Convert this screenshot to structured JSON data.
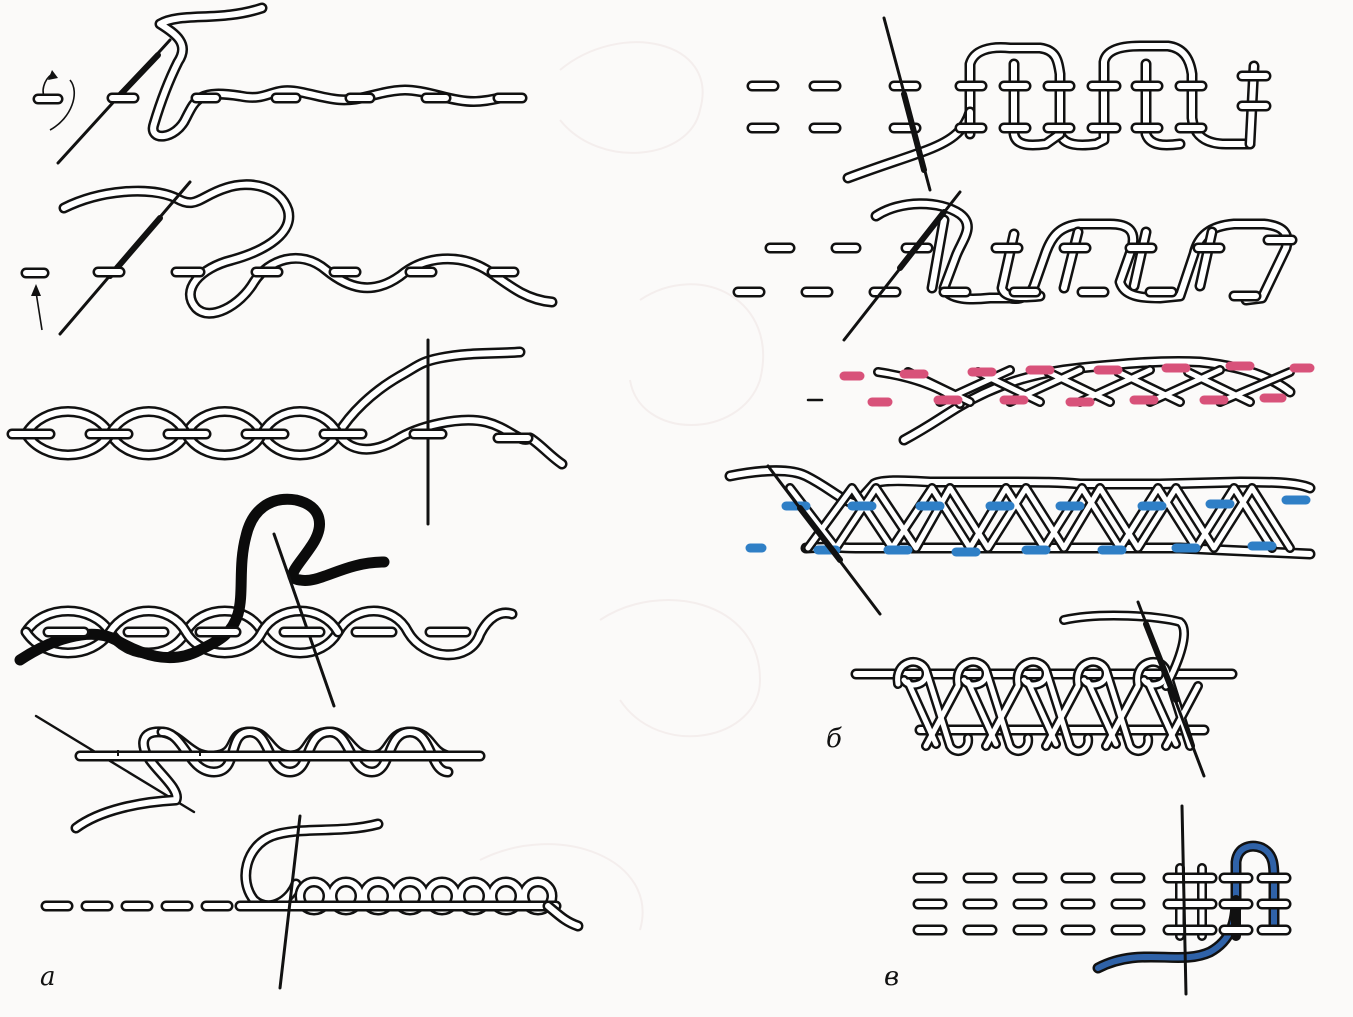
{
  "labels": {
    "a": "а",
    "b": "б",
    "c": "в"
  },
  "colors": {
    "outline": "#111111",
    "fill": "#ffffff",
    "background": "#fbfaf9",
    "pink": "#d8527a",
    "blue": "#2f7fc6",
    "dark_blue": "#2f62a8",
    "black_thread": "#0b0b0b"
  }
}
